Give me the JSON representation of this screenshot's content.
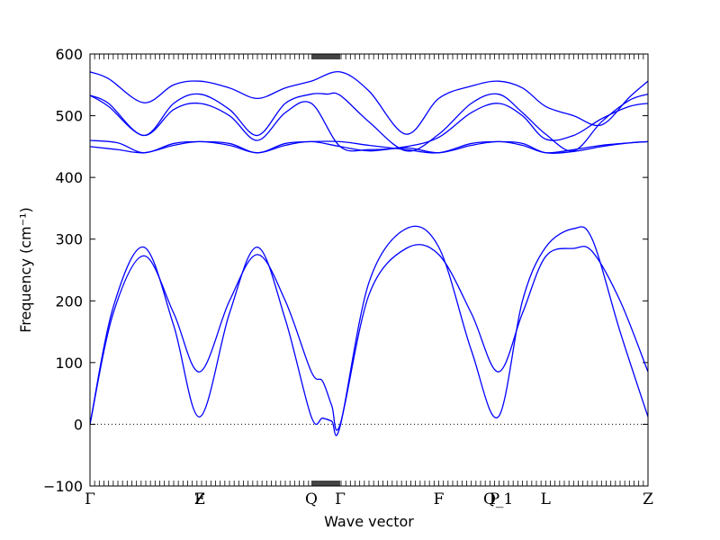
{
  "chart_data": {
    "type": "line",
    "title": "",
    "xlabel": "Wave vector",
    "ylabel": "Frequency",
    "ylabel_unit": "(cm⁻¹)",
    "ylim": [
      -100,
      600
    ],
    "yticks": [
      -100,
      0,
      100,
      200,
      300,
      400,
      500,
      600
    ],
    "xlim": [
      0,
      6.0
    ],
    "zero_line": true,
    "grid": false,
    "legend": "none",
    "line_color": "#0000ff",
    "high_symmetry_points": [
      {
        "label": "Γ",
        "x": 0.0
      },
      {
        "label": "Z",
        "x": 1.18
      },
      {
        "label": "F",
        "x": 1.18
      },
      {
        "label": "Q",
        "x": 2.38
      },
      {
        "label": "Γ",
        "x": 2.69
      },
      {
        "label": "F",
        "x": 3.75
      },
      {
        "label": "P",
        "x": 4.35
      },
      {
        "label": "Q_1",
        "x": 4.39
      },
      {
        "label": "L",
        "x": 4.9
      },
      {
        "label": "Z",
        "x": 6.0
      }
    ],
    "series": [
      {
        "x": [
          0,
          0.25,
          0.58,
          0.9,
          1.18,
          1.5,
          1.8,
          2.1,
          2.38,
          2.5,
          2.6,
          2.69,
          3.0,
          3.4,
          3.75,
          4.1,
          4.39,
          4.65,
          4.9,
          5.2,
          5.4,
          5.7,
          6.0
        ],
        "values": [
          0,
          190,
          287,
          160,
          12,
          180,
          287,
          170,
          12,
          10,
          5,
          -3,
          230,
          317,
          287,
          120,
          12,
          200,
          287,
          317,
          300,
          150,
          12
        ]
      },
      {
        "x": [
          0,
          0.25,
          0.58,
          0.9,
          1.18,
          1.5,
          1.8,
          2.1,
          2.38,
          2.5,
          2.6,
          2.69,
          3.0,
          3.4,
          3.75,
          4.1,
          4.39,
          4.65,
          4.9,
          5.2,
          5.4,
          5.7,
          6.0
        ],
        "values": [
          0,
          180,
          273,
          180,
          85,
          200,
          275,
          200,
          85,
          70,
          30,
          0,
          210,
          285,
          275,
          180,
          85,
          180,
          272,
          285,
          280,
          200,
          85
        ]
      },
      {
        "x": [
          0,
          0.3,
          0.58,
          0.9,
          1.18,
          1.5,
          1.8,
          2.1,
          2.38,
          2.69,
          3.0,
          3.4,
          3.75,
          4.1,
          4.39,
          4.65,
          4.9,
          5.2,
          5.5,
          5.8,
          6.0
        ],
        "values": [
          460,
          456,
          440,
          455,
          458,
          455,
          440,
          455,
          458,
          458,
          452,
          445,
          440,
          455,
          458,
          455,
          440,
          442,
          450,
          456,
          458
        ]
      },
      {
        "x": [
          0,
          0.3,
          0.58,
          0.9,
          1.18,
          1.5,
          1.8,
          2.1,
          2.38,
          2.69,
          3.0,
          3.4,
          3.75,
          4.1,
          4.39,
          4.65,
          4.9,
          5.2,
          5.5,
          5.8,
          6.0
        ],
        "values": [
          450,
          445,
          440,
          452,
          458,
          452,
          440,
          452,
          458,
          450,
          443,
          448,
          440,
          452,
          458,
          452,
          440,
          445,
          452,
          456,
          458
        ]
      },
      {
        "x": [
          0,
          0.2,
          0.58,
          0.9,
          1.18,
          1.5,
          1.8,
          2.1,
          2.38,
          2.55,
          2.69,
          3.0,
          3.4,
          3.75,
          4.1,
          4.39,
          4.65,
          4.9,
          5.2,
          5.5,
          5.8,
          6.0
        ],
        "values": [
          533,
          520,
          468,
          520,
          535,
          510,
          468,
          520,
          535,
          535,
          533,
          490,
          443,
          470,
          520,
          535,
          505,
          470,
          443,
          490,
          525,
          535
        ]
      },
      {
        "x": [
          0,
          0.2,
          0.58,
          0.9,
          1.18,
          1.5,
          1.8,
          2.1,
          2.38,
          2.69,
          3.0,
          3.4,
          3.75,
          4.1,
          4.39,
          4.65,
          4.9,
          5.2,
          5.5,
          5.8,
          6.0
        ],
        "values": [
          533,
          515,
          468,
          510,
          520,
          500,
          460,
          505,
          520,
          450,
          445,
          450,
          465,
          505,
          520,
          500,
          462,
          468,
          495,
          515,
          520
        ]
      },
      {
        "x": [
          0,
          0.2,
          0.58,
          0.9,
          1.18,
          1.5,
          1.8,
          2.1,
          2.38,
          2.69,
          3.0,
          3.4,
          3.75,
          4.1,
          4.39,
          4.65,
          4.9,
          5.2,
          5.5,
          5.8,
          6.0
        ],
        "values": [
          571,
          560,
          521,
          550,
          556,
          545,
          528,
          545,
          556,
          571,
          540,
          470,
          528,
          548,
          556,
          545,
          515,
          500,
          485,
          530,
          556
        ]
      }
    ]
  }
}
